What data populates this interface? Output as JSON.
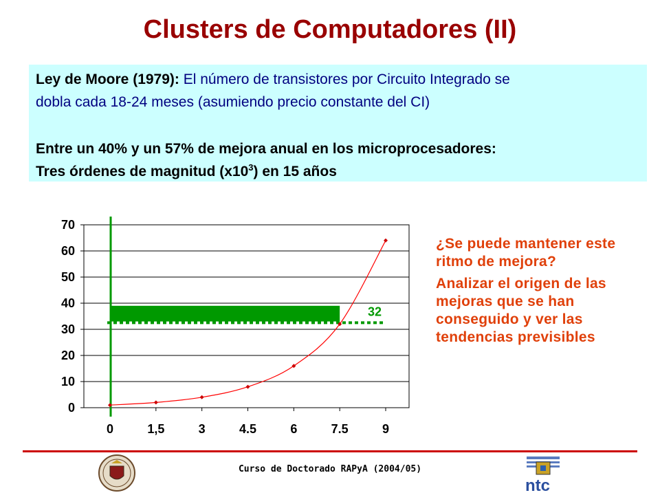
{
  "title": "Clusters de Computadores (II)",
  "moore": {
    "law_label": "Ley de Moore (1979):",
    "law_text_line1": " El número de transistores por Circuito Integrado se",
    "law_text_line2": "dobla cada 18-24 meses (asumiendo precio constante del CI)",
    "improvement_line": "Entre un 40% y un 57% de mejora anual en los microprocesadores:",
    "orders_prefix": "Tres órdenes de magnitud (x10",
    "orders_exponent": "3",
    "orders_suffix": ") en 15 años"
  },
  "side_text": {
    "question": "¿Se puede mantener este ritmo de mejora?",
    "analysis": "Analizar el origen de las mejoras que se han conseguido y ver las tendencias previsibles"
  },
  "footer": "Curso de Doctorado RAPyA (2004/05)",
  "logo_text": "ntc",
  "colors": {
    "title": "#990000",
    "box": "#ccffff",
    "curve": "#ff0000",
    "bar": "#009900",
    "side_text": "#e0400a",
    "footer_rule": "#cc0000"
  },
  "chart_data": {
    "type": "line",
    "categories": [
      "0",
      "1.5",
      "3",
      "4.5",
      "6",
      "7.5",
      "9"
    ],
    "x": [
      0,
      1.5,
      3,
      4.5,
      6,
      7.5,
      9
    ],
    "values": [
      1,
      2,
      4,
      8,
      16,
      32,
      64
    ],
    "y_ticks": [
      "0",
      "10",
      "20",
      "30",
      "40",
      "50",
      "60",
      "70"
    ],
    "ylim": [
      0,
      70
    ],
    "xlim": [
      0,
      9
    ],
    "grid": true,
    "annotation": {
      "label": "32",
      "value": 32
    },
    "highlight_bar": {
      "from_x": 0,
      "to_x": 7.5,
      "y_low": 33,
      "y_high": 39
    },
    "reference_line_y": 32,
    "vertical_marker_x": 0
  }
}
